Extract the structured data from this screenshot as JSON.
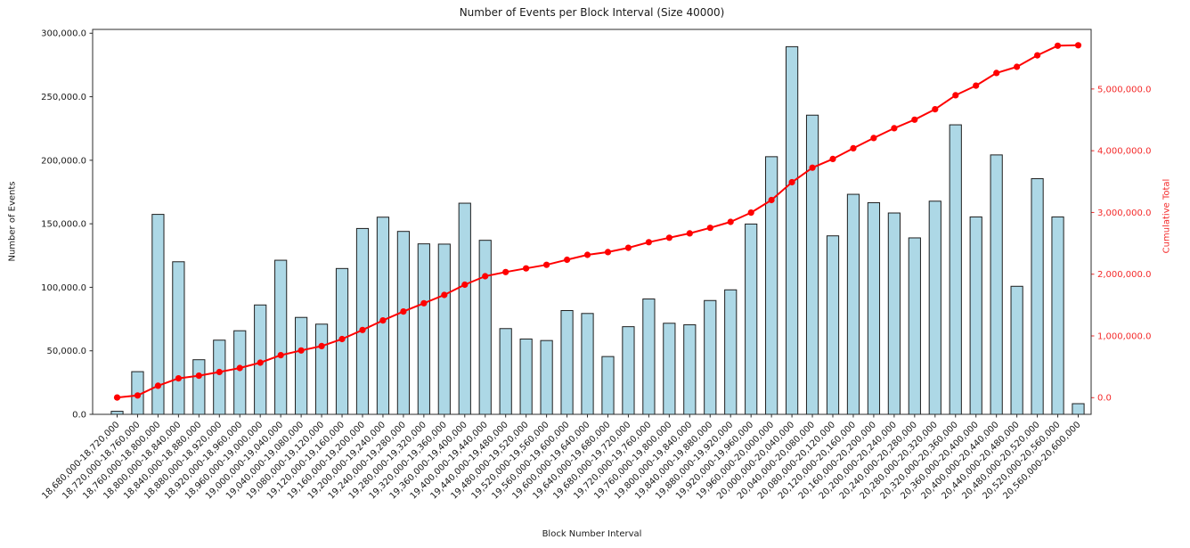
{
  "figure": {
    "title": "Number of Events per Block Interval (Size 40000)",
    "xlabel": "Block Number Interval",
    "ylabel_left": "Number of Events",
    "ylabel_right": "Cumulative Total"
  },
  "colors": {
    "bar_fill": "#add8e6",
    "bar_edge": "#1f1f1f",
    "line": "#ff0000",
    "right_axis_text": "#f42a2a",
    "left_axis_text": "#1a1a1a",
    "spine": "#2b2b2b",
    "background": "#ffffff"
  },
  "chart_data": {
    "type": "bar",
    "subtype": "bar-with-cumulative-line",
    "title": "Number of Events per Block Interval (Size 40000)",
    "xlabel": "Block Number Interval",
    "ylabel": "Number of Events",
    "ylabel_secondary": "Cumulative Total",
    "grid": false,
    "legend": false,
    "categories": [
      "18,680,000-18,720,000",
      "18,720,000-18,760,000",
      "18,760,000-18,800,000",
      "18,800,000-18,840,000",
      "18,840,000-18,880,000",
      "18,880,000-18,920,000",
      "18,920,000-18,960,000",
      "18,960,000-19,000,000",
      "19,000,000-19,040,000",
      "19,040,000-19,080,000",
      "19,080,000-19,120,000",
      "19,120,000-19,160,000",
      "19,160,000-19,200,000",
      "19,200,000-19,240,000",
      "19,240,000-19,280,000",
      "19,280,000-19,320,000",
      "19,320,000-19,360,000",
      "19,360,000-19,400,000",
      "19,400,000-19,440,000",
      "19,440,000-19,480,000",
      "19,480,000-19,520,000",
      "19,520,000-19,560,000",
      "19,560,000-19,600,000",
      "19,600,000-19,640,000",
      "19,640,000-19,680,000",
      "19,680,000-19,720,000",
      "19,720,000-19,760,000",
      "19,760,000-19,800,000",
      "19,800,000-19,840,000",
      "19,840,000-19,880,000",
      "19,880,000-19,920,000",
      "19,920,000-19,960,000",
      "19,960,000-20,000,000",
      "20,000,000-20,040,000",
      "20,040,000-20,080,000",
      "20,080,000-20,120,000",
      "20,120,000-20,160,000",
      "20,160,000-20,200,000",
      "20,200,000-20,240,000",
      "20,240,000-20,280,000",
      "20,280,000-20,320,000",
      "20,320,000-20,360,000",
      "20,360,000-20,400,000",
      "20,400,000-20,440,000",
      "20,440,000-20,480,000",
      "20,480,000-20,520,000",
      "20,520,000-20,560,000",
      "20,560,000-20,600,000"
    ],
    "series": [
      {
        "name": "Number of Events",
        "type": "bar",
        "axis": "left",
        "values": [
          2400,
          33600,
          157400,
          120100,
          43000,
          58400,
          65800,
          86100,
          121300,
          76300,
          71000,
          114800,
          146300,
          155200,
          144000,
          134200,
          134000,
          166200,
          137000,
          67500,
          59300,
          58100,
          81700,
          79400,
          45500,
          69000,
          90800,
          71700,
          70500,
          89600,
          98000,
          149800,
          202800,
          289400,
          235500,
          140500,
          173200,
          166600,
          158500,
          138900,
          167800,
          227900,
          155400,
          204200,
          100800,
          185500,
          155400,
          8400
        ]
      },
      {
        "name": "Cumulative Total",
        "type": "line",
        "axis": "right",
        "values": [
          2400,
          36000,
          193400,
          313500,
          356500,
          414900,
          480700,
          566800,
          688100,
          764400,
          835400,
          950200,
          1096500,
          1251700,
          1395700,
          1529900,
          1663900,
          1830100,
          1967100,
          2034600,
          2093900,
          2152000,
          2233700,
          2313100,
          2358600,
          2427600,
          2518400,
          2590100,
          2660600,
          2750200,
          2848200,
          2998000,
          3200800,
          3490200,
          3725700,
          3866200,
          4039400,
          4206000,
          4364500,
          4503400,
          4671200,
          4899100,
          5054500,
          5258700,
          5359500,
          5545000,
          5700400,
          5708800
        ]
      }
    ],
    "left_axis": {
      "min": 0,
      "max": 303000,
      "ticks": [
        0,
        50000,
        100000,
        150000,
        200000,
        250000,
        300000
      ],
      "tick_labels": [
        "0.0",
        "50,000.0",
        "100,000.0",
        "150,000.0",
        "200,000.0",
        "250,000.0",
        "300,000.0"
      ]
    },
    "right_axis": {
      "min": -270000,
      "max": 5965000,
      "ticks": [
        0,
        1000000,
        2000000,
        3000000,
        4000000,
        5000000
      ],
      "tick_labels": [
        "0.0",
        "1,000,000.0",
        "2,000,000.0",
        "3,000,000.0",
        "4,000,000.0",
        "5,000,000.0"
      ]
    }
  }
}
